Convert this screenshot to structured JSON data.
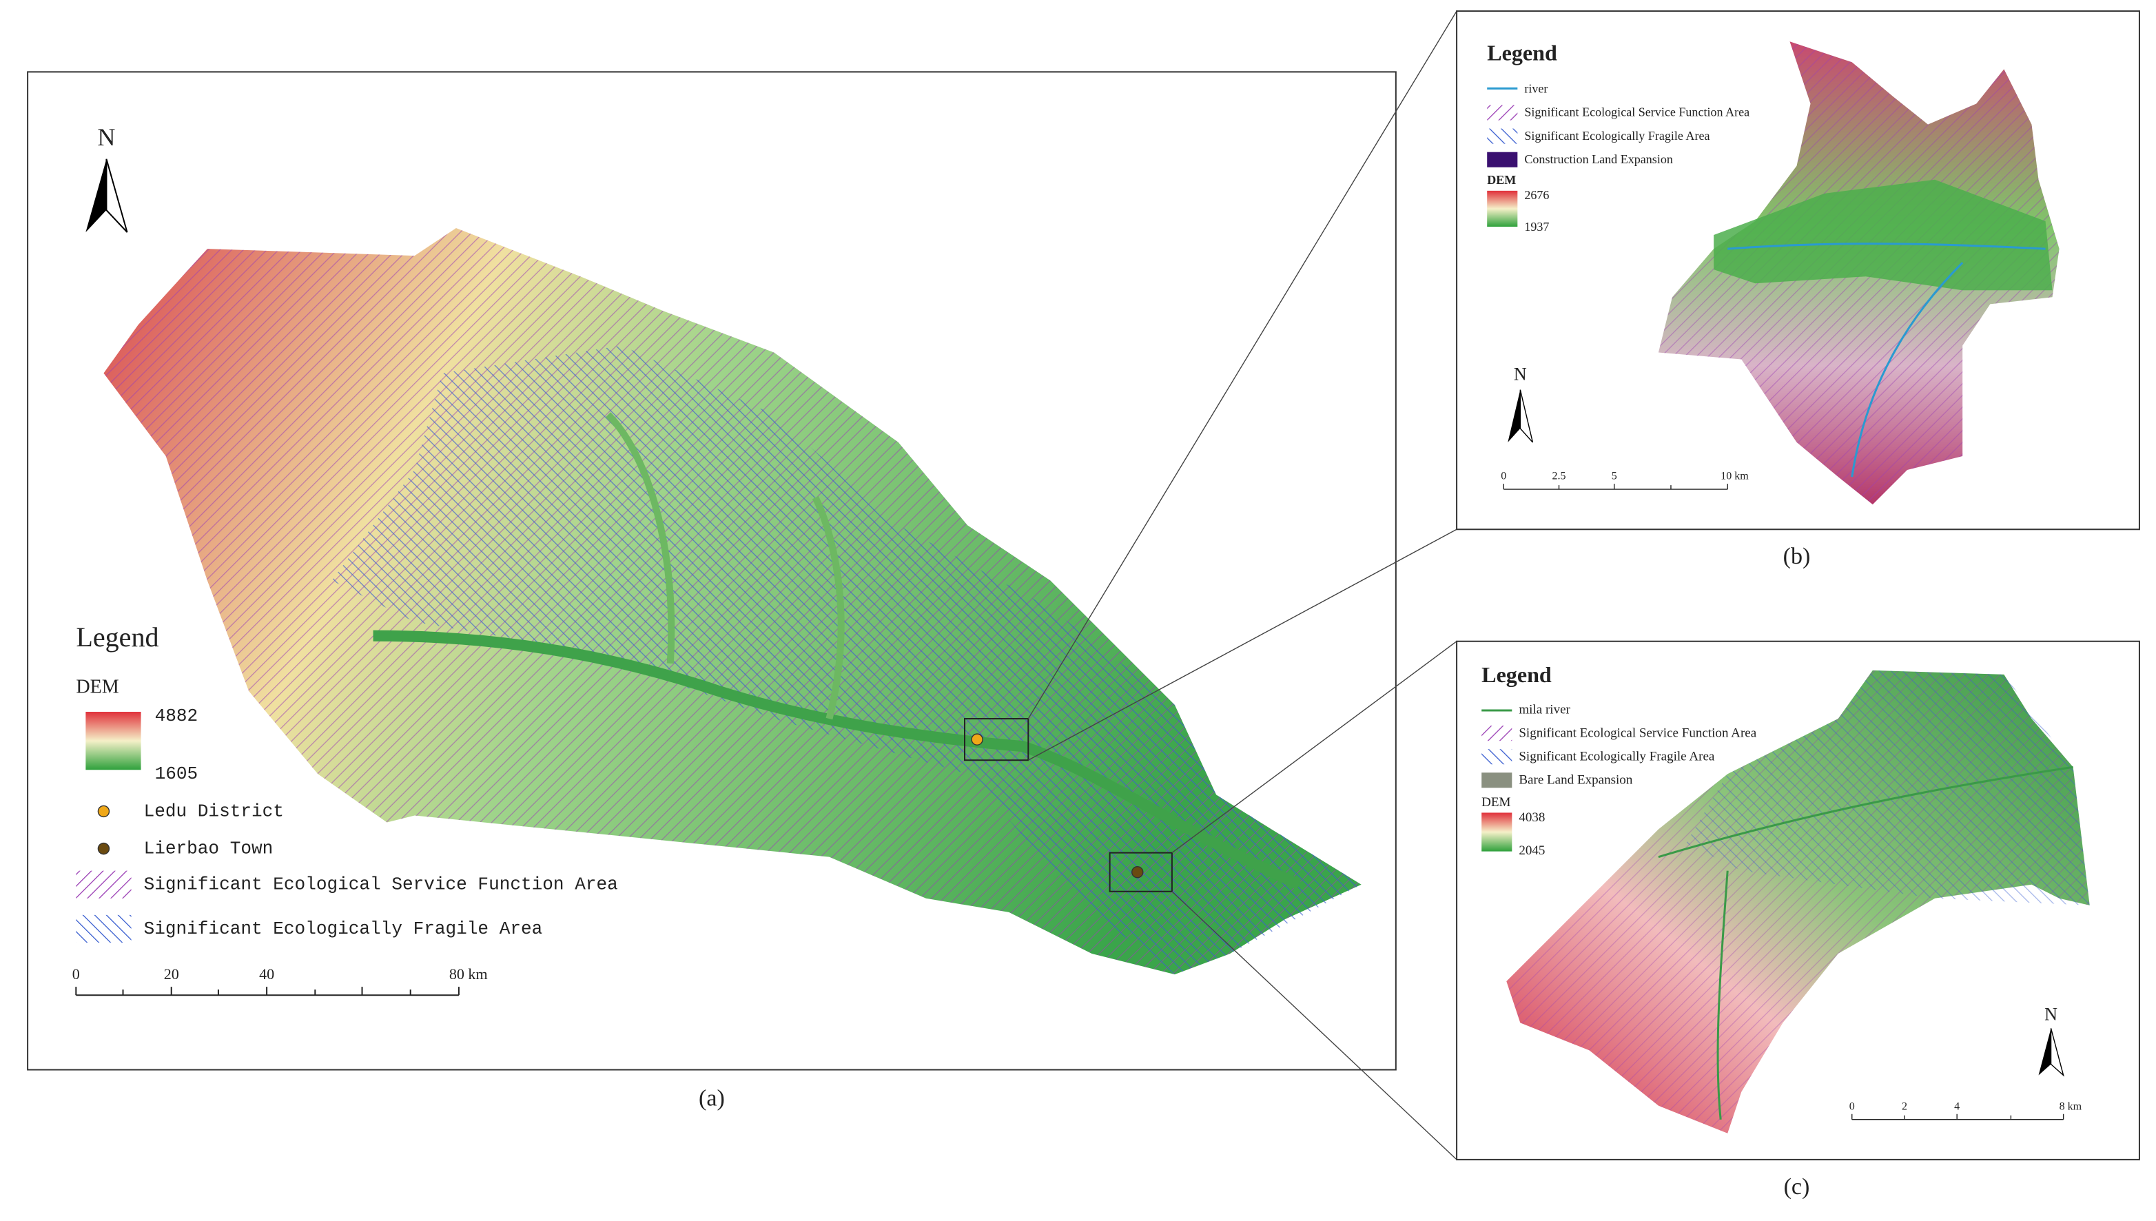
{
  "panels": [
    {
      "caption": "(a)",
      "north": "N",
      "legend": {
        "title": "Legend",
        "dem_title": "DEM",
        "dem_max": "4882",
        "dem_min": "1605",
        "items": [
          "Ledu District",
          "Lierbao Town",
          "Significant Ecological Service Function Area",
          "Significant Ecologically Fragile Area"
        ]
      },
      "scale": [
        "0",
        "20",
        "40",
        "80 km"
      ]
    },
    {
      "caption": "(b)",
      "north": "N",
      "legend": {
        "title": "Legend",
        "dem_title": "DEM",
        "dem_max": "2676",
        "dem_min": "1937",
        "items": [
          "river",
          "Significant Ecological Service Function Area",
          "Significant Ecologically Fragile Area",
          "Construction Land Expansion"
        ]
      },
      "scale": [
        "0",
        "2.5",
        "5",
        "10 km"
      ]
    },
    {
      "caption": "(c)",
      "north": "N",
      "legend": {
        "title": "Legend",
        "dem_title": "DEM",
        "dem_max": "4038",
        "dem_min": "2045",
        "items": [
          "mila river",
          "Significant Ecological Service Function Area",
          "Significant Ecologically Fragile Area",
          "Bare Land Expansion"
        ]
      },
      "scale": [
        "0",
        "2",
        "4",
        "8 km"
      ]
    }
  ]
}
